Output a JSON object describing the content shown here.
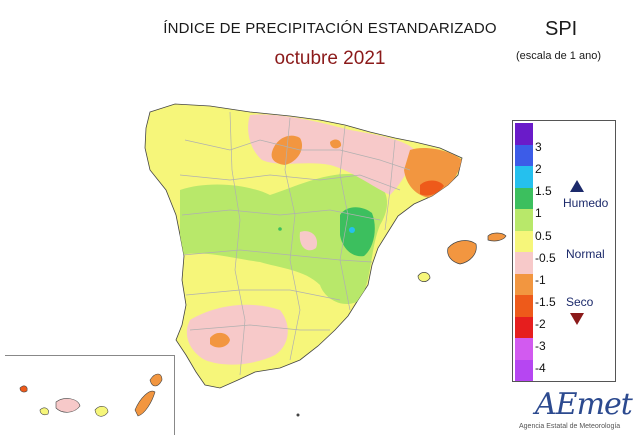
{
  "title": "ÍNDICE DE PRECIPITACIÓN ESTANDARIZADO",
  "period": "octubre 2021",
  "index_name": "SPI",
  "scale_note": "(escala de 1 ano)",
  "legend": {
    "ticks": [
      "3",
      "2",
      "1.5",
      "1",
      "0.5",
      "-0.5",
      "-1",
      "-1.5",
      "-2",
      "-3",
      "-4"
    ],
    "colors": [
      "#6a1bc9",
      "#3c5ce8",
      "#25c0ee",
      "#3cbf5e",
      "#b8e86a",
      "#f6f67a",
      "#f7c9c9",
      "#f29640",
      "#ee5a1a",
      "#e61e1e",
      "#d25af0",
      "#b646f2"
    ],
    "categories": {
      "wet": "Humedo",
      "normal": "Normal",
      "dry": "Seco"
    }
  },
  "logo": {
    "name": "AEmet",
    "subtitle": "Agencia Estatal de Meteorología"
  },
  "palette": {
    "yellow": "#f6f67a",
    "light_green": "#b8e86a",
    "green": "#3cbf5e",
    "cyan": "#25c0ee",
    "pink": "#f7c9c9",
    "orange": "#f29640",
    "dark_orange": "#ee5a1a"
  }
}
